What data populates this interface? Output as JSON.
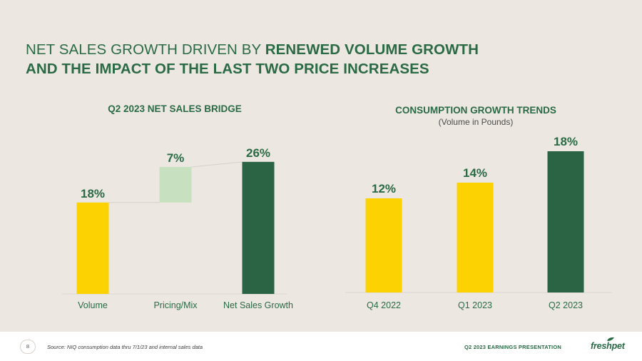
{
  "slide": {
    "title_line1_light": "NET SALES GROWTH DRIVEN BY ",
    "title_line1_bold": "RENEWED VOLUME GROWTH",
    "title_line2_bold": "AND THE IMPACT OF THE LAST TWO PRICE INCREASES"
  },
  "colors": {
    "yellow": "#fcd202",
    "light_green": "#c7e0bf",
    "dark_green": "#2a6444",
    "title_green": "#2a6a45",
    "background": "#ece7e1"
  },
  "chart_data": [
    {
      "type": "waterfall",
      "title": "Q2 2023 NET SALES BRIDGE",
      "categories": [
        "Volume",
        "Pricing/Mix",
        "Net Sales Growth"
      ],
      "values": [
        18,
        7,
        26
      ],
      "value_labels": [
        "18%",
        "7%",
        "26%"
      ],
      "bases": [
        0,
        18,
        0
      ],
      "ylim": [
        0,
        26
      ],
      "colors": [
        "#fcd202",
        "#c7e0bf",
        "#2a6444"
      ]
    },
    {
      "type": "bar",
      "title": "CONSUMPTION GROWTH TRENDS",
      "subtitle": "(Volume in Pounds)",
      "categories": [
        "Q4 2022",
        "Q1 2023",
        "Q2 2023"
      ],
      "values": [
        12,
        14,
        18
      ],
      "value_labels": [
        "12%",
        "14%",
        "18%"
      ],
      "ylim": [
        0,
        18
      ],
      "colors": [
        "#fcd202",
        "#fcd202",
        "#2a6444"
      ]
    }
  ],
  "footer": {
    "page_number": "8",
    "source": "Source:  NIQ consumption  data thru  7/1/23 and internal sales data",
    "presentation_label": "Q2 2023 EARNINGS  PRESENTATION",
    "logo_text": "freshpet"
  }
}
